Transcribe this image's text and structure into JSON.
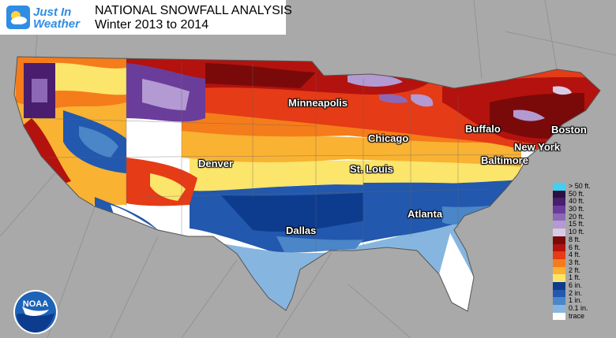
{
  "header": {
    "brand_line1": "Just In",
    "brand_line2": "Weather",
    "title": "NATIONAL SNOWFALL ANALYSIS",
    "subtitle": "Winter 2013 to 2014"
  },
  "cities": [
    {
      "name": "Minneapolis"
    },
    {
      "name": "Chicago"
    },
    {
      "name": "Buffalo"
    },
    {
      "name": "Boston"
    },
    {
      "name": "New York"
    },
    {
      "name": "Baltimore"
    },
    {
      "name": "Denver"
    },
    {
      "name": "St. Louis"
    },
    {
      "name": "Atlanta"
    },
    {
      "name": "Dallas"
    }
  ],
  "legend": [
    {
      "label": "> 50 ft.",
      "color": "#3fd0f2"
    },
    {
      "label": "50 ft.",
      "color": "#2a1142"
    },
    {
      "label": "40 ft.",
      "color": "#4a1d6e"
    },
    {
      "label": "30 ft.",
      "color": "#6b3d9a"
    },
    {
      "label": "20 ft.",
      "color": "#8c68b6"
    },
    {
      "label": "15 ft.",
      "color": "#b39ad2"
    },
    {
      "label": "10 ft.",
      "color": "#d7cbe6"
    },
    {
      "label": "8 ft.",
      "color": "#7a0a0a"
    },
    {
      "label": "6 ft.",
      "color": "#b3120e"
    },
    {
      "label": "4 ft.",
      "color": "#e53b16"
    },
    {
      "label": "3 ft.",
      "color": "#f57c1b"
    },
    {
      "label": "2 ft.",
      "color": "#f9b232"
    },
    {
      "label": "1 ft.",
      "color": "#fbe56a"
    },
    {
      "label": "6 in.",
      "color": "#0d3c8f"
    },
    {
      "label": "2 in.",
      "color": "#2258ad"
    },
    {
      "label": "1 in.",
      "color": "#4a86c8"
    },
    {
      "label": "0.1 in.",
      "color": "#86b6df"
    },
    {
      "label": "trace",
      "color": "#ffffff"
    }
  ],
  "logos": {
    "noaa": "NOAA"
  }
}
